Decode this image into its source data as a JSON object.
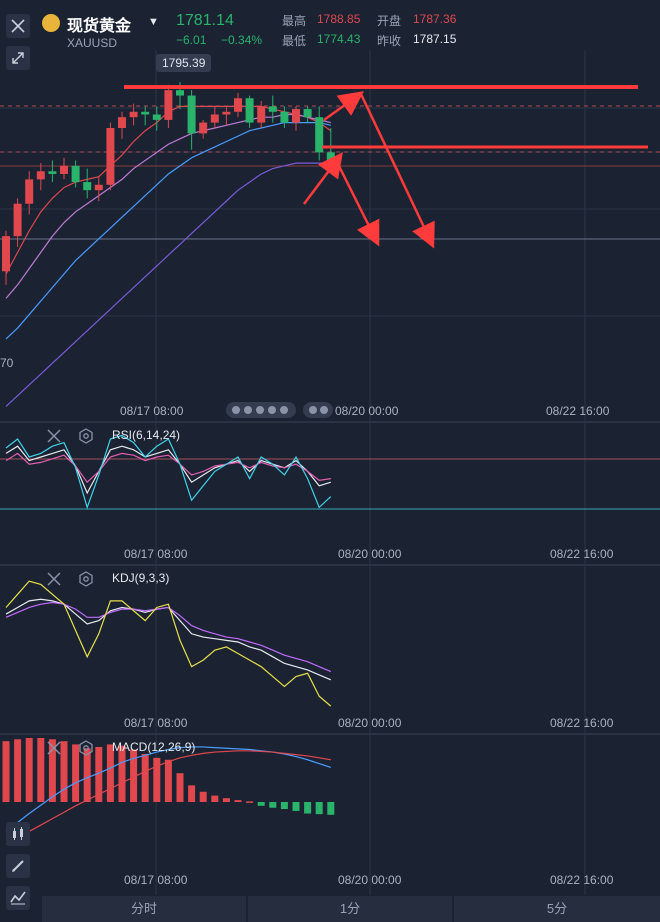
{
  "header": {
    "title": "现货黄金",
    "symbol": "XAUUSD",
    "price": "1781.14",
    "change": "−6.01",
    "change_pct": "−0.34%",
    "high_label": "最高",
    "high": "1788.85",
    "open_label": "开盘",
    "open": "1787.36",
    "low_label": "最低",
    "low": "1774.43",
    "prev_label": "昨收",
    "prev_close": "1787.15"
  },
  "main": {
    "price_tag": "1795.39",
    "partial_axis_label": "70",
    "time_labels": [
      "08/17 08:00",
      "08/20 00:00",
      "08/22 16:00"
    ]
  },
  "rsi": {
    "title": "RSI(6,14,24)"
  },
  "kdj": {
    "title": "KDJ(9,3,3)"
  },
  "macd": {
    "title": "MACD(12,26,9)"
  },
  "tabs": [
    "分时",
    "1分",
    "5分"
  ],
  "colors": {
    "bg": "#1b2232",
    "up": "#e0484d",
    "down": "#29b36b",
    "annotation": "#ff3b3b"
  },
  "chart_data": {
    "type": "candlestick",
    "candles": [
      [
        1745,
        1760,
        1740,
        1758
      ],
      [
        1758,
        1772,
        1754,
        1770
      ],
      [
        1770,
        1782,
        1766,
        1779
      ],
      [
        1779,
        1785,
        1775,
        1782
      ],
      [
        1782,
        1786,
        1778,
        1781
      ],
      [
        1781,
        1787,
        1779,
        1784
      ],
      [
        1784,
        1786,
        1776,
        1778
      ],
      [
        1778,
        1783,
        1772,
        1775
      ],
      [
        1775,
        1780,
        1771,
        1777
      ],
      [
        1777,
        1800,
        1775,
        1798
      ],
      [
        1798,
        1804,
        1794,
        1802
      ],
      [
        1802,
        1807,
        1799,
        1804
      ],
      [
        1804,
        1806,
        1799,
        1803
      ],
      [
        1803,
        1806,
        1797,
        1801
      ],
      [
        1801,
        1814,
        1798,
        1812
      ],
      [
        1812,
        1815,
        1805,
        1810
      ],
      [
        1810,
        1812,
        1790,
        1796
      ],
      [
        1796,
        1801,
        1794,
        1800
      ],
      [
        1800,
        1806,
        1798,
        1803
      ],
      [
        1803,
        1806,
        1799,
        1804
      ],
      [
        1804,
        1811,
        1802,
        1809
      ],
      [
        1809,
        1810,
        1798,
        1800
      ],
      [
        1800,
        1808,
        1798,
        1806
      ],
      [
        1806,
        1810,
        1800,
        1804
      ],
      [
        1804,
        1806,
        1798,
        1800
      ],
      [
        1800,
        1806,
        1797,
        1805
      ],
      [
        1805,
        1806,
        1800,
        1802
      ],
      [
        1802,
        1806,
        1786,
        1789
      ],
      [
        1789,
        1798,
        1782,
        1786
      ]
    ],
    "ma_series": [
      {
        "color": "#e0484d",
        "values": [
          1744,
          1752,
          1760,
          1767,
          1772,
          1776,
          1778,
          1779,
          1780,
          1784,
          1788,
          1793,
          1797,
          1800,
          1804,
          1806,
          1806,
          1806,
          1806,
          1806,
          1806,
          1806,
          1806,
          1805,
          1804,
          1803,
          1802,
          1800,
          1797
        ]
      },
      {
        "color": "#c07bd6",
        "values": [
          1735,
          1740,
          1746,
          1752,
          1758,
          1763,
          1767,
          1770,
          1773,
          1776,
          1779,
          1783,
          1786,
          1789,
          1792,
          1794,
          1796,
          1797,
          1798,
          1799,
          1800,
          1801,
          1802,
          1802,
          1803,
          1803,
          1802,
          1801,
          1800
        ]
      },
      {
        "color": "#4a9cff",
        "values": [
          1720,
          1724,
          1729,
          1734,
          1739,
          1744,
          1749,
          1753,
          1757,
          1761,
          1765,
          1769,
          1773,
          1777,
          1781,
          1784,
          1787,
          1789,
          1791,
          1793,
          1795,
          1797,
          1798,
          1799,
          1800,
          1800,
          1800,
          1800,
          1799
        ]
      },
      {
        "color": "#7b5bd8",
        "values": [
          1695,
          1699,
          1703,
          1707,
          1711,
          1715,
          1719,
          1723,
          1727,
          1731,
          1735,
          1739,
          1743,
          1747,
          1751,
          1755,
          1759,
          1763,
          1767,
          1771,
          1775,
          1778,
          1781,
          1783,
          1784,
          1785,
          1785,
          1785,
          1785
        ]
      }
    ],
    "rsi": [
      {
        "color": "#e6e9ef",
        "values": [
          62,
          66,
          58,
          60,
          62,
          64,
          55,
          40,
          52,
          64,
          66,
          64,
          60,
          62,
          64,
          56,
          46,
          50,
          54,
          56,
          58,
          52,
          58,
          56,
          54,
          58,
          52,
          44,
          46
        ]
      },
      {
        "color": "#e25fb0",
        "values": [
          58,
          62,
          56,
          57,
          59,
          61,
          55,
          46,
          52,
          60,
          62,
          61,
          58,
          60,
          61,
          56,
          50,
          52,
          55,
          56,
          57,
          54,
          57,
          55,
          54,
          56,
          52,
          47,
          48
        ]
      },
      {
        "color": "#3fd3ea",
        "values": [
          65,
          70,
          60,
          62,
          66,
          68,
          54,
          32,
          50,
          70,
          72,
          68,
          60,
          66,
          70,
          56,
          36,
          44,
          52,
          56,
          60,
          48,
          60,
          56,
          50,
          60,
          48,
          32,
          38
        ]
      }
    ],
    "kdj": [
      {
        "color": "#e6e9ef",
        "values": [
          62,
          66,
          70,
          71,
          70,
          68,
          62,
          56,
          58,
          64,
          66,
          65,
          63,
          65,
          66,
          58,
          50,
          48,
          47,
          46,
          45,
          42,
          40,
          36,
          32,
          30,
          28,
          25,
          22
        ]
      },
      {
        "color": "#c26bff",
        "values": [
          60,
          63,
          66,
          68,
          69,
          68,
          65,
          60,
          60,
          63,
          65,
          65,
          64,
          65,
          66,
          61,
          55,
          52,
          50,
          48,
          47,
          45,
          43,
          40,
          37,
          35,
          33,
          30,
          27
        ]
      },
      {
        "color": "#e8e04a",
        "values": [
          66,
          74,
          82,
          80,
          74,
          68,
          52,
          36,
          50,
          70,
          70,
          64,
          58,
          66,
          68,
          46,
          30,
          34,
          40,
          42,
          38,
          34,
          30,
          24,
          18,
          24,
          26,
          12,
          6
        ]
      }
    ],
    "macd": {
      "hist": [
        9.5,
        9.8,
        10,
        10,
        9.8,
        9.5,
        9.0,
        8.4,
        8.6,
        9.0,
        8.8,
        8.2,
        7.5,
        6.9,
        6.6,
        4.5,
        2.6,
        1.6,
        1.0,
        0.6,
        0.3,
        0.1,
        -0.6,
        -0.9,
        -1.1,
        -1.4,
        -1.8,
        -1.9,
        -2.0
      ],
      "dif": [
        -4.5,
        -3.2,
        -1.8,
        -0.5,
        0.8,
        2.0,
        3.0,
        3.8,
        4.5,
        5.3,
        6.2,
        6.8,
        7.3,
        7.8,
        8.2,
        8.5,
        8.6,
        8.6,
        8.5,
        8.4,
        8.3,
        8.2,
        8.0,
        7.8,
        7.5,
        7.1,
        6.6,
        6.0,
        5.4
      ],
      "dea": [
        -6.5,
        -5.6,
        -4.6,
        -3.6,
        -2.6,
        -1.6,
        -0.6,
        0.3,
        1.2,
        2.1,
        3.0,
        3.9,
        4.8,
        5.6,
        6.3,
        6.9,
        7.3,
        7.6,
        7.8,
        7.9,
        8.0,
        8.0,
        7.9,
        7.8,
        7.6,
        7.4,
        7.2,
        6.9,
        6.6
      ]
    }
  }
}
